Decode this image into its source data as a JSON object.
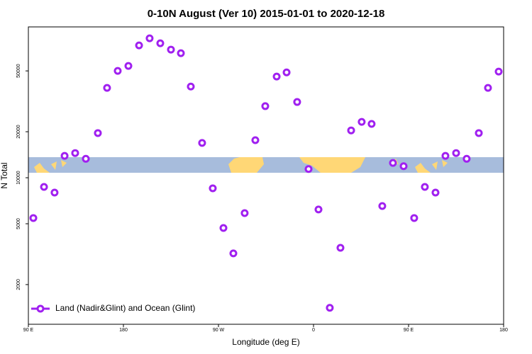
{
  "chart_data": {
    "type": "scatter",
    "title": "0-10N August (Ver 10)   2015-01-01 to 2020-12-18",
    "x_label": "Longitude (deg E)",
    "y_label": "N Total",
    "x": [
      94.7,
      104.8,
      114.8,
      124.3,
      134.3,
      144.4,
      155.8,
      164.5,
      174.6,
      184.7,
      194.8,
      204.8,
      214.9,
      225.0,
      234.4,
      243.8,
      254.5,
      264.6,
      274.7,
      284.1,
      294.8,
      304.9,
      314.3,
      325.1,
      334.5,
      344.5,
      355.3,
      364.7,
      375.4,
      385.5,
      395.6,
      405.6,
      415.0,
      425.1,
      435.2,
      445.3,
      455.3,
      465.4,
      475.5,
      484.9,
      495.0,
      505.0,
      516.5,
      525.2,
      535.3
    ],
    "series": [
      {
        "name": "Land (Nadir&Glint) and Ocean (Glint)",
        "color": "#a020f0",
        "values": [
          5450,
          8710,
          8000,
          13900,
          14500,
          13300,
          19600,
          38700,
          50000,
          53900,
          73400,
          81700,
          75800,
          68900,
          65300,
          39500,
          16900,
          8530,
          4690,
          3200,
          5870,
          17600,
          29400,
          45900,
          48900,
          31300,
          11400,
          6200,
          1410,
          3480,
          20400,
          23200,
          22500,
          6530,
          12500,
          11900,
          5450,
          8710,
          8000,
          13900,
          14500,
          13300,
          19600,
          38700,
          49500
        ]
      }
    ],
    "xlim": [
      90,
      540
    ],
    "xticks": [
      {
        "value": 90,
        "label": "90 E"
      },
      180,
      {
        "value": 270,
        "label": "90 W"
      },
      {
        "value": 360,
        "label": "0"
      },
      {
        "value": 450,
        "label": "90 E"
      },
      {
        "value": 540,
        "label": "180"
      }
    ],
    "ylim": [
      1100,
      97000
    ],
    "log_y": true,
    "yticks": [
      2000,
      5000,
      10000,
      20000,
      50000
    ],
    "legend": "bottom-left"
  }
}
